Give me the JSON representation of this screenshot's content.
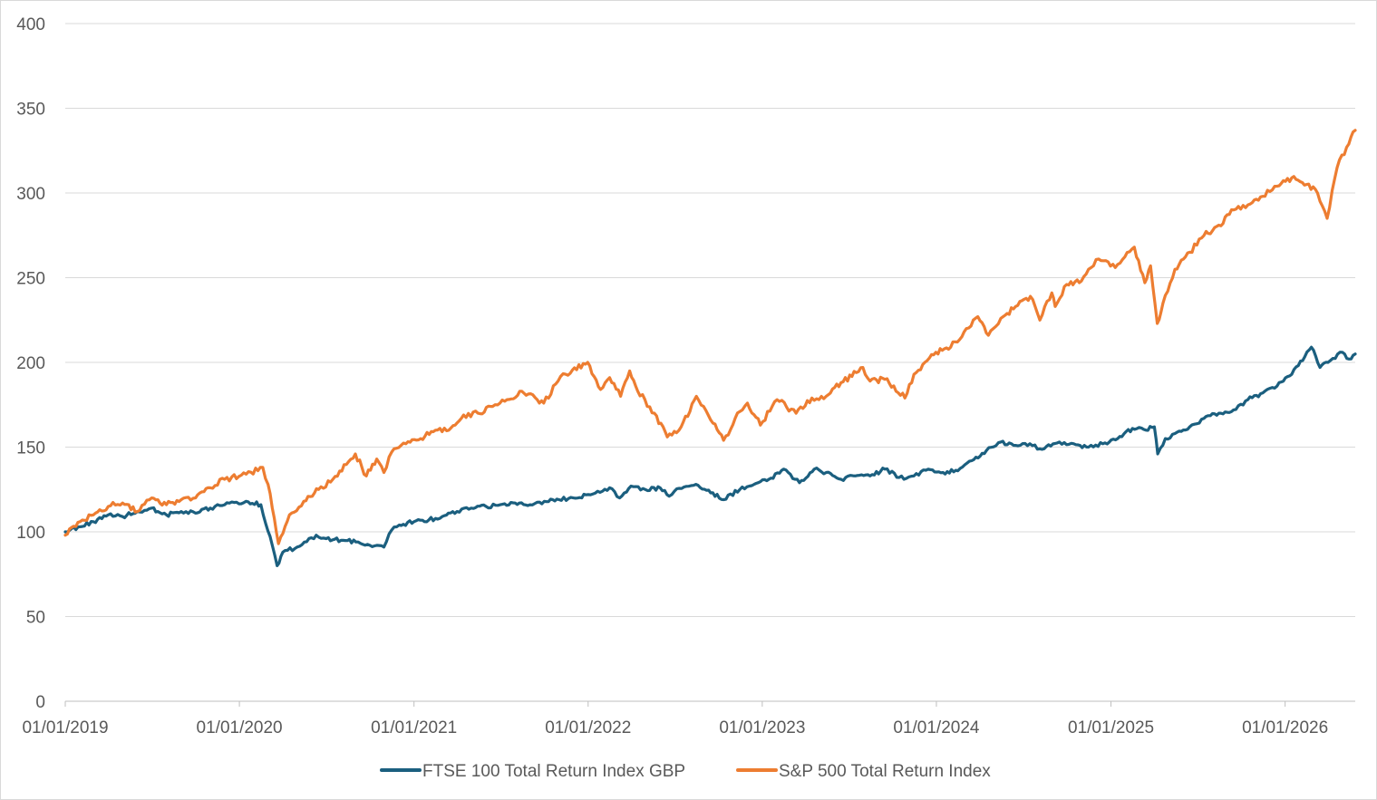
{
  "chart_data": {
    "type": "line",
    "title": "",
    "xlabel": "",
    "ylabel": "",
    "ylim": [
      0,
      400
    ],
    "xlim": [
      "2019-01-01",
      "2026-05-28"
    ],
    "grid": true,
    "legend_position": "bottom",
    "y_ticks": [
      "0",
      "50",
      "100",
      "150",
      "200",
      "250",
      "300",
      "350",
      "400"
    ],
    "x_ticks": [
      {
        "date": "2019-01-01",
        "label": "01/01/2019"
      },
      {
        "date": "2020-01-01",
        "label": "01/01/2020"
      },
      {
        "date": "2021-01-01",
        "label": "01/01/2021"
      },
      {
        "date": "2022-01-01",
        "label": "01/01/2022"
      },
      {
        "date": "2023-01-01",
        "label": "01/01/2023"
      },
      {
        "date": "2024-01-01",
        "label": "01/01/2024"
      },
      {
        "date": "2025-01-01",
        "label": "01/01/2025"
      },
      {
        "date": "2026-01-01",
        "label": "01/01/2026"
      }
    ],
    "series": [
      {
        "name": "FTSE 100 Total Return Index GBP",
        "color": "#1b5f7f",
        "points": [
          [
            "2019-01-01",
            100
          ],
          [
            "2019-02-01",
            103
          ],
          [
            "2019-03-01",
            106
          ],
          [
            "2019-04-01",
            110
          ],
          [
            "2019-05-01",
            109
          ],
          [
            "2019-06-01",
            112
          ],
          [
            "2019-07-01",
            114
          ],
          [
            "2019-08-01",
            110
          ],
          [
            "2019-09-01",
            112
          ],
          [
            "2019-10-01",
            111
          ],
          [
            "2019-11-01",
            114
          ],
          [
            "2019-12-01",
            116
          ],
          [
            "2020-01-15",
            118
          ],
          [
            "2020-02-15",
            116
          ],
          [
            "2020-02-25",
            105
          ],
          [
            "2020-03-10",
            92
          ],
          [
            "2020-03-20",
            80
          ],
          [
            "2020-04-01",
            88
          ],
          [
            "2020-05-01",
            91
          ],
          [
            "2020-06-10",
            98
          ],
          [
            "2020-07-01",
            96
          ],
          [
            "2020-08-01",
            95
          ],
          [
            "2020-09-01",
            94
          ],
          [
            "2020-10-30",
            91
          ],
          [
            "2020-11-15",
            101
          ],
          [
            "2020-12-01",
            104
          ],
          [
            "2021-01-01",
            106
          ],
          [
            "2021-02-01",
            107
          ],
          [
            "2021-03-01",
            109
          ],
          [
            "2021-04-01",
            112
          ],
          [
            "2021-05-01",
            114
          ],
          [
            "2021-06-01",
            115
          ],
          [
            "2021-07-01",
            116
          ],
          [
            "2021-08-01",
            117
          ],
          [
            "2021-09-01",
            116
          ],
          [
            "2021-10-01",
            118
          ],
          [
            "2021-11-01",
            119
          ],
          [
            "2021-12-01",
            120
          ],
          [
            "2022-01-01",
            122
          ],
          [
            "2022-02-15",
            126
          ],
          [
            "2022-03-08",
            120
          ],
          [
            "2022-04-01",
            127
          ],
          [
            "2022-05-01",
            125
          ],
          [
            "2022-06-01",
            126
          ],
          [
            "2022-06-20",
            121
          ],
          [
            "2022-07-01",
            124
          ],
          [
            "2022-08-15",
            128
          ],
          [
            "2022-09-15",
            123
          ],
          [
            "2022-10-12",
            119
          ],
          [
            "2022-11-15",
            125
          ],
          [
            "2022-12-15",
            128
          ],
          [
            "2023-01-15",
            131
          ],
          [
            "2023-02-15",
            137
          ],
          [
            "2023-03-20",
            129
          ],
          [
            "2023-04-20",
            137
          ],
          [
            "2023-05-15",
            135
          ],
          [
            "2023-06-15",
            131
          ],
          [
            "2023-07-15",
            133
          ],
          [
            "2023-08-15",
            133
          ],
          [
            "2023-09-15",
            137
          ],
          [
            "2023-10-25",
            131
          ],
          [
            "2023-11-15",
            133
          ],
          [
            "2023-12-15",
            137
          ],
          [
            "2024-01-15",
            135
          ],
          [
            "2024-02-15",
            136
          ],
          [
            "2024-03-15",
            142
          ],
          [
            "2024-04-15",
            148
          ],
          [
            "2024-05-15",
            153
          ],
          [
            "2024-06-15",
            151
          ],
          [
            "2024-07-15",
            152
          ],
          [
            "2024-08-05",
            149
          ],
          [
            "2024-09-15",
            153
          ],
          [
            "2024-10-15",
            152
          ],
          [
            "2024-11-15",
            150
          ],
          [
            "2024-12-15",
            152
          ],
          [
            "2025-01-15",
            155
          ],
          [
            "2025-02-15",
            161
          ],
          [
            "2025-03-15",
            160
          ],
          [
            "2025-04-02",
            162
          ],
          [
            "2025-04-09",
            146
          ],
          [
            "2025-04-25",
            155
          ],
          [
            "2025-05-15",
            158
          ],
          [
            "2025-06-15",
            162
          ],
          [
            "2025-07-15",
            167
          ],
          [
            "2025-08-15",
            170
          ],
          [
            "2025-09-15",
            172
          ],
          [
            "2025-10-15",
            178
          ],
          [
            "2025-11-15",
            182
          ],
          [
            "2025-12-15",
            186
          ],
          [
            "2026-01-15",
            193
          ],
          [
            "2026-02-25",
            209
          ],
          [
            "2026-03-15",
            197
          ],
          [
            "2026-04-01",
            200
          ],
          [
            "2026-05-01",
            206
          ],
          [
            "2026-05-15",
            202
          ],
          [
            "2026-05-28",
            205
          ]
        ]
      },
      {
        "name": "S&P 500 Total Return Index",
        "color": "#ed7d31",
        "points": [
          [
            "2019-01-01",
            98
          ],
          [
            "2019-02-01",
            106
          ],
          [
            "2019-03-01",
            110
          ],
          [
            "2019-04-01",
            115
          ],
          [
            "2019-05-01",
            117
          ],
          [
            "2019-06-01",
            112
          ],
          [
            "2019-07-01",
            120
          ],
          [
            "2019-08-01",
            116
          ],
          [
            "2019-09-01",
            119
          ],
          [
            "2019-10-01",
            120
          ],
          [
            "2019-11-01",
            126
          ],
          [
            "2019-12-01",
            131
          ],
          [
            "2020-01-15",
            134
          ],
          [
            "2020-02-19",
            138
          ],
          [
            "2020-03-01",
            128
          ],
          [
            "2020-03-23",
            93
          ],
          [
            "2020-04-15",
            110
          ],
          [
            "2020-05-15",
            118
          ],
          [
            "2020-06-15",
            125
          ],
          [
            "2020-07-15",
            131
          ],
          [
            "2020-08-31",
            146
          ],
          [
            "2020-09-23",
            133
          ],
          [
            "2020-10-15",
            143
          ],
          [
            "2020-10-30",
            135
          ],
          [
            "2020-11-15",
            147
          ],
          [
            "2020-12-15",
            152
          ],
          [
            "2021-01-15",
            155
          ],
          [
            "2021-02-15",
            160
          ],
          [
            "2021-03-15",
            160
          ],
          [
            "2021-04-15",
            169
          ],
          [
            "2021-05-15",
            170
          ],
          [
            "2021-06-15",
            174
          ],
          [
            "2021-07-15",
            178
          ],
          [
            "2021-08-15",
            183
          ],
          [
            "2021-09-30",
            176
          ],
          [
            "2021-10-30",
            189
          ],
          [
            "2021-11-15",
            193
          ],
          [
            "2021-12-31",
            200
          ],
          [
            "2022-01-27",
            184
          ],
          [
            "2022-02-15",
            191
          ],
          [
            "2022-03-10",
            180
          ],
          [
            "2022-03-29",
            195
          ],
          [
            "2022-04-15",
            183
          ],
          [
            "2022-05-20",
            170
          ],
          [
            "2022-06-16",
            156
          ],
          [
            "2022-07-15",
            162
          ],
          [
            "2022-08-16",
            180
          ],
          [
            "2022-09-15",
            166
          ],
          [
            "2022-10-12",
            154
          ],
          [
            "2022-11-15",
            171
          ],
          [
            "2022-12-01",
            176
          ],
          [
            "2022-12-28",
            163
          ],
          [
            "2023-02-01",
            178
          ],
          [
            "2023-03-13",
            170
          ],
          [
            "2023-04-15",
            179
          ],
          [
            "2023-05-15",
            180
          ],
          [
            "2023-06-15",
            188
          ],
          [
            "2023-07-31",
            197
          ],
          [
            "2023-08-15",
            189
          ],
          [
            "2023-09-15",
            190
          ],
          [
            "2023-10-27",
            179
          ],
          [
            "2023-11-15",
            193
          ],
          [
            "2023-12-31",
            206
          ],
          [
            "2024-01-31",
            209
          ],
          [
            "2024-02-28",
            218
          ],
          [
            "2024-03-28",
            227
          ],
          [
            "2024-04-19",
            216
          ],
          [
            "2024-05-15",
            226
          ],
          [
            "2024-06-15",
            233
          ],
          [
            "2024-07-16",
            239
          ],
          [
            "2024-08-05",
            225
          ],
          [
            "2024-08-30",
            241
          ],
          [
            "2024-09-06",
            233
          ],
          [
            "2024-09-30",
            246
          ],
          [
            "2024-10-31",
            248
          ],
          [
            "2024-11-15",
            255
          ],
          [
            "2024-12-06",
            261
          ],
          [
            "2025-01-10",
            256
          ],
          [
            "2025-02-19",
            268
          ],
          [
            "2025-03-13",
            247
          ],
          [
            "2025-03-25",
            257
          ],
          [
            "2025-04-08",
            223
          ],
          [
            "2025-04-20",
            235
          ],
          [
            "2025-05-15",
            255
          ],
          [
            "2025-06-15",
            265
          ],
          [
            "2025-07-15",
            275
          ],
          [
            "2025-08-15",
            281
          ],
          [
            "2025-09-15",
            290
          ],
          [
            "2025-10-15",
            293
          ],
          [
            "2025-11-15",
            298
          ],
          [
            "2025-12-15",
            304
          ],
          [
            "2026-01-15",
            309
          ],
          [
            "2026-02-15",
            305
          ],
          [
            "2026-03-10",
            300
          ],
          [
            "2026-03-30",
            285
          ],
          [
            "2026-04-20",
            315
          ],
          [
            "2026-05-10",
            327
          ],
          [
            "2026-05-28",
            337
          ]
        ]
      }
    ]
  },
  "legend": [
    {
      "label": "FTSE 100 Total Return Index GBP",
      "color": "#1b5f7f"
    },
    {
      "label": "S&P 500 Total Return Index",
      "color": "#ed7d31"
    }
  ]
}
